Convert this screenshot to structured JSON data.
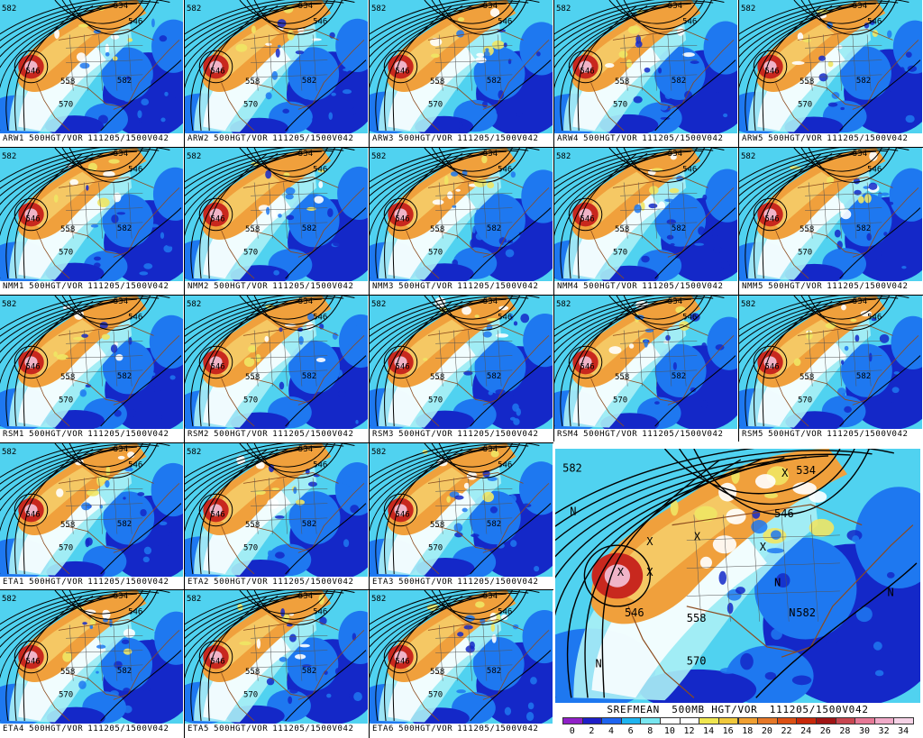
{
  "field_description": "500mb height contours with absolute vorticity shading",
  "panels": [
    {
      "id": "ARW1",
      "member": "ARW1",
      "field": "500HGT/VOR",
      "valid": "111205/1500V042"
    },
    {
      "id": "ARW2",
      "member": "ARW2",
      "field": "500HGT/VOR",
      "valid": "111205/1500V042"
    },
    {
      "id": "ARW3",
      "member": "ARW3",
      "field": "500HGT/VOR",
      "valid": "111205/1500V042"
    },
    {
      "id": "ARW4",
      "member": "ARW4",
      "field": "500HGT/VOR",
      "valid": "111205/1500V042"
    },
    {
      "id": "ARW5",
      "member": "ARW5",
      "field": "500HGT/VOR",
      "valid": "111205/1500V042"
    },
    {
      "id": "NMM1",
      "member": "NMM1",
      "field": "500HGT/VOR",
      "valid": "111205/1500V042"
    },
    {
      "id": "NMM2",
      "member": "NMM2",
      "field": "500HGT/VOR",
      "valid": "111205/1500V042"
    },
    {
      "id": "NMM3",
      "member": "NMM3",
      "field": "500HGT/VOR",
      "valid": "111205/1500V042"
    },
    {
      "id": "NMM4",
      "member": "NMM4",
      "field": "500HGT/VOR",
      "valid": "111205/1500V042"
    },
    {
      "id": "NMM5",
      "member": "NMM5",
      "field": "500HGT/VOR",
      "valid": "111205/1500V042"
    },
    {
      "id": "RSM1",
      "member": "RSM1",
      "field": "500HGT/VOR",
      "valid": "111205/1500V042"
    },
    {
      "id": "RSM2",
      "member": "RSM2",
      "field": "500HGT/VOR",
      "valid": "111205/1500V042"
    },
    {
      "id": "RSM3",
      "member": "RSM3",
      "field": "500HGT/VOR",
      "valid": "111205/1500V042"
    },
    {
      "id": "RSM4",
      "member": "RSM4",
      "field": "500HGT/VOR",
      "valid": "111205/1500V042"
    },
    {
      "id": "RSM5",
      "member": "RSM5",
      "field": "500HGT/VOR",
      "valid": "111205/1500V042"
    },
    {
      "id": "ETA1",
      "member": "ETA1",
      "field": "500HGT/VOR",
      "valid": "111205/1500V042"
    },
    {
      "id": "ETA2",
      "member": "ETA2",
      "field": "500HGT/VOR",
      "valid": "111205/1500V042"
    },
    {
      "id": "ETA3",
      "member": "ETA3",
      "field": "500HGT/VOR",
      "valid": "111205/1500V042"
    },
    {
      "id": "ETA4",
      "member": "ETA4",
      "field": "500HGT/VOR",
      "valid": "111205/1500V042"
    },
    {
      "id": "ETA5",
      "member": "ETA5",
      "field": "500HGT/VOR",
      "valid": "111205/1500V042"
    },
    {
      "id": "ETA6",
      "member": "ETA6",
      "field": "500HGT/VOR",
      "valid": "111205/1500V042"
    }
  ],
  "contour_labels": {
    "low": "546",
    "mid": "558",
    "south": "570",
    "ridge": "582",
    "north": "534"
  },
  "mean_panel": {
    "member": "SREFMEAN",
    "field": "500MB HGT/VOR",
    "valid": "111205/1500V042",
    "labels": {
      "northwest": "582",
      "north": "534",
      "northcenter": "546",
      "low": "546",
      "center": "558",
      "east": "582",
      "south": "570",
      "n_left": "N",
      "n_west": "N",
      "n_center": "N",
      "n_east": "N",
      "n_southwest": "N",
      "x1": "X",
      "x2": "X",
      "x3": "X",
      "x4": "X",
      "x5": "X",
      "x6": "X"
    }
  },
  "colorbar": {
    "labels": [
      "0",
      "2",
      "4",
      "6",
      "8",
      "10",
      "12",
      "14",
      "16",
      "18",
      "20",
      "22",
      "24",
      "26",
      "28",
      "30",
      "32",
      "34"
    ],
    "colors": [
      "#9020c8",
      "#1e1ec8",
      "#1e64f0",
      "#1eb4f0",
      "#78e6f0",
      "#ffffff",
      "#ffffff",
      "#f0e650",
      "#f0c83c",
      "#f0a032",
      "#e67828",
      "#dc5014",
      "#c8280a",
      "#a01414",
      "#c84650",
      "#e67896",
      "#f0aac8",
      "#f5d2e6"
    ]
  },
  "colors": {
    "deep_blue": "#1428c8",
    "mid_blue": "#1e78f0",
    "cyan": "#50d2f0",
    "light_cyan": "#aaf0f5",
    "orange": "#f0a03c",
    "light_orange": "#f5c864",
    "yellow": "#f0e664",
    "red": "#c8281e",
    "pink": "#f0b4c8",
    "contour": "#000000",
    "border": "#8c4b1e"
  }
}
